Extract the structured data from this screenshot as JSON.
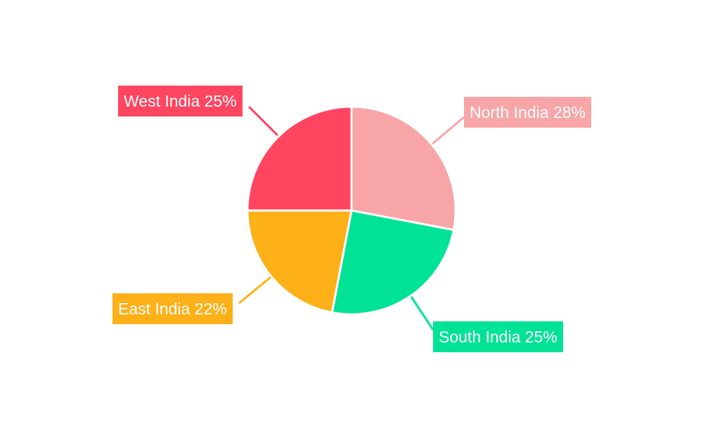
{
  "chart_data": {
    "type": "pie",
    "title": "",
    "start_angle": "top, clockwise",
    "legend": "none (direct labels)",
    "slices": [
      {
        "label": "North India",
        "value": 28,
        "display": "North India 28%",
        "color": "#F8A5A7"
      },
      {
        "label": "South India",
        "value": 25,
        "display": "South India 25%",
        "color": "#00E396"
      },
      {
        "label": "East India",
        "value": 22,
        "display": "East India 22%",
        "color": "#FEB019"
      },
      {
        "label": "West India",
        "value": 25,
        "display": "West India 25%",
        "color": "#FF4560"
      }
    ]
  }
}
